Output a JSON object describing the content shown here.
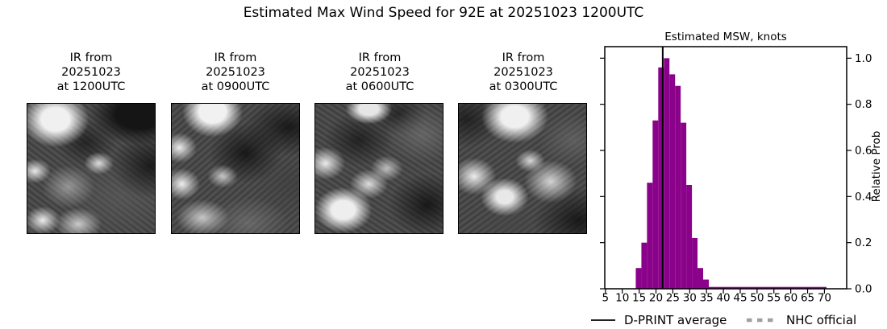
{
  "header": {
    "title": "Estimated Max Wind Speed for 92E at 20251023 1200UTC"
  },
  "ir_panels": [
    {
      "label": "IR from\n20251023\nat 1200UTC",
      "image": "ir-satellite-grayscale"
    },
    {
      "label": "IR from\n20251023\nat 0900UTC",
      "image": "ir-satellite-grayscale"
    },
    {
      "label": "IR from\n20251023\nat 0600UTC",
      "image": "ir-satellite-grayscale"
    },
    {
      "label": "IR from\n20251023\nat 0300UTC",
      "image": "ir-satellite-grayscale"
    }
  ],
  "chart_data": {
    "type": "bar",
    "title": "Estimated MSW, knots",
    "ylabel": "Relative Prob",
    "bar_color": "#8a018a",
    "bin_edges_knots": [
      14.0,
      15.67,
      17.33,
      19.0,
      20.67,
      22.33,
      24.0,
      25.67,
      27.33,
      29.0,
      30.67,
      32.33,
      34.0,
      35.67
    ],
    "values": [
      0.09,
      0.2,
      0.46,
      0.73,
      0.96,
      1.0,
      0.93,
      0.88,
      0.72,
      0.45,
      0.22,
      0.09,
      0.04
    ],
    "tail": {
      "from": 35.67,
      "to": 70.6,
      "height": 0.008
    },
    "dprint_average_knots": 22.0,
    "x_ticks": [
      5,
      10,
      15,
      20,
      25,
      30,
      35,
      40,
      45,
      50,
      55,
      60,
      65,
      70
    ],
    "y_ticks": [
      0.0,
      0.2,
      0.4,
      0.6,
      0.8,
      1.0
    ],
    "y_tick_labels": [
      "0.0",
      "0.2",
      "0.4",
      "0.6",
      "0.8",
      "1.0"
    ],
    "xlim": [
      4.8,
      76.6
    ],
    "ylim": [
      0,
      1.05
    ],
    "grid": false,
    "legend_position": "below-axis",
    "legend": [
      {
        "label": "D-PRINT average",
        "style": "solid-black-line",
        "color": "#000000"
      },
      {
        "label": "NHC official",
        "style": "dashed-gray-line",
        "color": "#a0a0a0"
      }
    ]
  }
}
